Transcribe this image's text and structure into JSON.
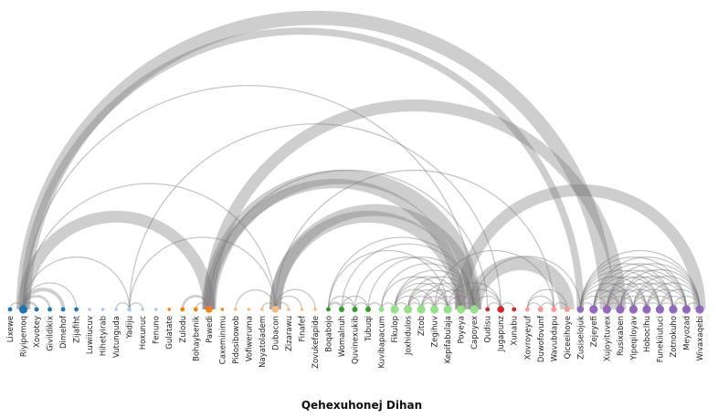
{
  "chart_data": {
    "type": "arc-diagram",
    "title": "Qehexuhonej Dihan",
    "nodes": [
      {
        "name": "Lixewe",
        "group": 0,
        "size": 1
      },
      {
        "name": "Riyipemoq",
        "group": 0,
        "size": 4
      },
      {
        "name": "Xovotey",
        "group": 0,
        "size": 1
      },
      {
        "name": "Givildikix",
        "group": 0,
        "size": 1
      },
      {
        "name": "Dimehof",
        "group": 0,
        "size": 1
      },
      {
        "name": "Zijafiht",
        "group": 0,
        "size": 1
      },
      {
        "name": "Luwiiucuv",
        "group": 1,
        "size": 0
      },
      {
        "name": "Hihetyirab",
        "group": 1,
        "size": 0
      },
      {
        "name": "Vutunguda",
        "group": 1,
        "size": 0
      },
      {
        "name": "Yadiju",
        "group": 1,
        "size": 1
      },
      {
        "name": "Hoxunuc",
        "group": 1,
        "size": 0
      },
      {
        "name": "Fenuno",
        "group": 1,
        "size": 0
      },
      {
        "name": "Gulatate",
        "group": 2,
        "size": 0
      },
      {
        "name": "Zulodu",
        "group": 2,
        "size": 1
      },
      {
        "name": "Bohaybenik",
        "group": 2,
        "size": 1
      },
      {
        "name": "Pawedi",
        "group": 2,
        "size": 3
      },
      {
        "name": "Caxeminimu",
        "group": 2,
        "size": 0
      },
      {
        "name": "Pidosibowob",
        "group": 3,
        "size": 0
      },
      {
        "name": "Vofiweruma",
        "group": 3,
        "size": 0
      },
      {
        "name": "Nayatoladem",
        "group": 3,
        "size": 0
      },
      {
        "name": "Dubacon",
        "group": 3,
        "size": 3
      },
      {
        "name": "Zizarawu",
        "group": 3,
        "size": 0
      },
      {
        "name": "Finafef",
        "group": 3,
        "size": 0
      },
      {
        "name": "Zovukefapide",
        "group": 3,
        "size": 0
      },
      {
        "name": "Boqabojo",
        "group": 4,
        "size": 1
      },
      {
        "name": "Womalnuh",
        "group": 4,
        "size": 2
      },
      {
        "name": "Quvinexukib",
        "group": 4,
        "size": 2
      },
      {
        "name": "Tubuqi",
        "group": 4,
        "size": 2
      },
      {
        "name": "Kuvibapacum",
        "group": 5,
        "size": 2
      },
      {
        "name": "Fikulop",
        "group": 5,
        "size": 4
      },
      {
        "name": "Joxhidulos",
        "group": 5,
        "size": 4
      },
      {
        "name": "Zitob",
        "group": 5,
        "size": 4
      },
      {
        "name": "Zegihuv",
        "group": 5,
        "size": 4
      },
      {
        "name": "Kepifabulaja",
        "group": 5,
        "size": 4
      },
      {
        "name": "Poyeya",
        "group": 5,
        "size": 4
      },
      {
        "name": "Capoyex",
        "group": 5,
        "size": 4
      },
      {
        "name": "Qudisu",
        "group": 6,
        "size": 1
      },
      {
        "name": "Jugapunz",
        "group": 6,
        "size": 3
      },
      {
        "name": "Xunabu",
        "group": 6,
        "size": 1
      },
      {
        "name": "Xovroyeyuf",
        "group": 7,
        "size": 1
      },
      {
        "name": "Duwofovunf",
        "group": 7,
        "size": 2
      },
      {
        "name": "Wavubdapu",
        "group": 7,
        "size": 2
      },
      {
        "name": "Qiceeihoye",
        "group": 7,
        "size": 2
      },
      {
        "name": "Zusiselojuk",
        "group": 8,
        "size": 3
      },
      {
        "name": "Zejeyefi",
        "group": 8,
        "size": 4
      },
      {
        "name": "Xujoyituvex",
        "group": 8,
        "size": 4
      },
      {
        "name": "Rusixaben",
        "group": 8,
        "size": 4
      },
      {
        "name": "Yipeqiloyav",
        "group": 8,
        "size": 4
      },
      {
        "name": "Hoboclhu",
        "group": 8,
        "size": 4
      },
      {
        "name": "Funekiiutuci",
        "group": 8,
        "size": 4
      },
      {
        "name": "Zotnokuho",
        "group": 8,
        "size": 4
      },
      {
        "name": "Meyozad",
        "group": 8,
        "size": 4
      },
      {
        "name": "Wivaxaqebi",
        "group": 8,
        "size": 4
      }
    ],
    "groups": [
      {
        "color": "#1f77b4"
      },
      {
        "color": "#aec7e8"
      },
      {
        "color": "#ff7f0e"
      },
      {
        "color": "#ffbb78"
      },
      {
        "color": "#2ca02c"
      },
      {
        "color": "#98df8a"
      },
      {
        "color": "#d62728"
      },
      {
        "color": "#ff9896"
      },
      {
        "color": "#9467bd"
      }
    ],
    "links": [
      {
        "source": 1,
        "target": 0,
        "value": 1
      },
      {
        "source": 1,
        "target": 2,
        "value": 2
      },
      {
        "source": 1,
        "target": 3,
        "value": 2
      },
      {
        "source": 1,
        "target": 4,
        "value": 3
      },
      {
        "source": 1,
        "target": 5,
        "value": 1
      },
      {
        "source": 1,
        "target": 9,
        "value": 1
      },
      {
        "source": 1,
        "target": 15,
        "value": 10
      },
      {
        "source": 1,
        "target": 20,
        "value": 1
      },
      {
        "source": 1,
        "target": 35,
        "value": 1
      },
      {
        "source": 1,
        "target": 43,
        "value": 6
      },
      {
        "source": 1,
        "target": 45,
        "value": 12
      },
      {
        "source": 8,
        "target": 9,
        "value": 1
      },
      {
        "source": 9,
        "target": 10,
        "value": 1
      },
      {
        "source": 9,
        "target": 20,
        "value": 1
      },
      {
        "source": 9,
        "target": 37,
        "value": 1
      },
      {
        "source": 13,
        "target": 15,
        "value": 2
      },
      {
        "source": 14,
        "target": 15,
        "value": 1
      },
      {
        "source": 15,
        "target": 34,
        "value": 8
      },
      {
        "source": 15,
        "target": 35,
        "value": 12
      },
      {
        "source": 15,
        "target": 36,
        "value": 1
      },
      {
        "source": 15,
        "target": 46,
        "value": 10
      },
      {
        "source": 17,
        "target": 20,
        "value": 1
      },
      {
        "source": 19,
        "target": 20,
        "value": 1
      },
      {
        "source": 20,
        "target": 21,
        "value": 1
      },
      {
        "source": 20,
        "target": 22,
        "value": 1
      },
      {
        "source": 20,
        "target": 23,
        "value": 1
      },
      {
        "source": 20,
        "target": 34,
        "value": 10
      },
      {
        "source": 20,
        "target": 35,
        "value": 10
      },
      {
        "source": 20,
        "target": 41,
        "value": 1
      },
      {
        "source": 24,
        "target": 25,
        "value": 2
      },
      {
        "source": 24,
        "target": 26,
        "value": 1
      },
      {
        "source": 24,
        "target": 33,
        "value": 1
      },
      {
        "source": 24,
        "target": 35,
        "value": 1
      },
      {
        "source": 25,
        "target": 26,
        "value": 1
      },
      {
        "source": 25,
        "target": 27,
        "value": 1
      },
      {
        "source": 25,
        "target": 35,
        "value": 1
      },
      {
        "source": 26,
        "target": 27,
        "value": 1
      },
      {
        "source": 26,
        "target": 34,
        "value": 1
      },
      {
        "source": 27,
        "target": 28,
        "value": 1
      },
      {
        "source": 27,
        "target": 35,
        "value": 1
      },
      {
        "source": 28,
        "target": 29,
        "value": 1
      },
      {
        "source": 28,
        "target": 33,
        "value": 1
      },
      {
        "source": 28,
        "target": 35,
        "value": 1
      },
      {
        "source": 29,
        "target": 30,
        "value": 1
      },
      {
        "source": 29,
        "target": 31,
        "value": 1
      },
      {
        "source": 29,
        "target": 32,
        "value": 1
      },
      {
        "source": 29,
        "target": 33,
        "value": 1
      },
      {
        "source": 29,
        "target": 34,
        "value": 1
      },
      {
        "source": 29,
        "target": 35,
        "value": 1
      },
      {
        "source": 30,
        "target": 31,
        "value": 1
      },
      {
        "source": 30,
        "target": 32,
        "value": 1
      },
      {
        "source": 30,
        "target": 33,
        "value": 1
      },
      {
        "source": 30,
        "target": 34,
        "value": 1
      },
      {
        "source": 30,
        "target": 35,
        "value": 1
      },
      {
        "source": 31,
        "target": 32,
        "value": 1
      },
      {
        "source": 31,
        "target": 33,
        "value": 1
      },
      {
        "source": 31,
        "target": 34,
        "value": 1
      },
      {
        "source": 31,
        "target": 35,
        "value": 1
      },
      {
        "source": 32,
        "target": 33,
        "value": 1
      },
      {
        "source": 32,
        "target": 34,
        "value": 1
      },
      {
        "source": 32,
        "target": 35,
        "value": 1
      },
      {
        "source": 32,
        "target": 41,
        "value": 1
      },
      {
        "source": 33,
        "target": 34,
        "value": 1
      },
      {
        "source": 33,
        "target": 35,
        "value": 1
      },
      {
        "source": 33,
        "target": 37,
        "value": 1
      },
      {
        "source": 34,
        "target": 35,
        "value": 1
      },
      {
        "source": 34,
        "target": 37,
        "value": 1
      },
      {
        "source": 34,
        "target": 52,
        "value": 10
      },
      {
        "source": 35,
        "target": 37,
        "value": 1
      },
      {
        "source": 35,
        "target": 42,
        "value": 12
      },
      {
        "source": 35,
        "target": 43,
        "value": 1
      },
      {
        "source": 36,
        "target": 37,
        "value": 1
      },
      {
        "source": 37,
        "target": 38,
        "value": 1
      },
      {
        "source": 39,
        "target": 40,
        "value": 1
      },
      {
        "source": 39,
        "target": 41,
        "value": 1
      },
      {
        "source": 39,
        "target": 42,
        "value": 1
      },
      {
        "source": 40,
        "target": 41,
        "value": 1
      },
      {
        "source": 41,
        "target": 42,
        "value": 1
      },
      {
        "source": 43,
        "target": 44,
        "value": 1
      },
      {
        "source": 43,
        "target": 45,
        "value": 1
      },
      {
        "source": 43,
        "target": 46,
        "value": 1
      },
      {
        "source": 43,
        "target": 47,
        "value": 1
      },
      {
        "source": 43,
        "target": 48,
        "value": 1
      },
      {
        "source": 43,
        "target": 49,
        "value": 1
      },
      {
        "source": 43,
        "target": 50,
        "value": 1
      },
      {
        "source": 43,
        "target": 51,
        "value": 1
      },
      {
        "source": 43,
        "target": 52,
        "value": 1
      },
      {
        "source": 44,
        "target": 45,
        "value": 1
      },
      {
        "source": 44,
        "target": 46,
        "value": 1
      },
      {
        "source": 44,
        "target": 47,
        "value": 1
      },
      {
        "source": 44,
        "target": 48,
        "value": 1
      },
      {
        "source": 44,
        "target": 49,
        "value": 1
      },
      {
        "source": 44,
        "target": 50,
        "value": 1
      },
      {
        "source": 44,
        "target": 51,
        "value": 1
      },
      {
        "source": 44,
        "target": 52,
        "value": 1
      },
      {
        "source": 45,
        "target": 46,
        "value": 1
      },
      {
        "source": 45,
        "target": 47,
        "value": 1
      },
      {
        "source": 45,
        "target": 48,
        "value": 1
      },
      {
        "source": 45,
        "target": 49,
        "value": 1
      },
      {
        "source": 45,
        "target": 50,
        "value": 1
      },
      {
        "source": 45,
        "target": 51,
        "value": 1
      },
      {
        "source": 45,
        "target": 52,
        "value": 1
      },
      {
        "source": 46,
        "target": 47,
        "value": 1
      },
      {
        "source": 46,
        "target": 48,
        "value": 1
      },
      {
        "source": 46,
        "target": 49,
        "value": 1
      },
      {
        "source": 46,
        "target": 50,
        "value": 1
      },
      {
        "source": 46,
        "target": 51,
        "value": 1
      },
      {
        "source": 46,
        "target": 52,
        "value": 1
      },
      {
        "source": 47,
        "target": 48,
        "value": 1
      },
      {
        "source": 47,
        "target": 49,
        "value": 1
      },
      {
        "source": 47,
        "target": 50,
        "value": 1
      },
      {
        "source": 47,
        "target": 51,
        "value": 1
      },
      {
        "source": 47,
        "target": 52,
        "value": 1
      },
      {
        "source": 48,
        "target": 49,
        "value": 1
      },
      {
        "source": 48,
        "target": 50,
        "value": 1
      },
      {
        "source": 48,
        "target": 51,
        "value": 1
      },
      {
        "source": 48,
        "target": 52,
        "value": 1
      },
      {
        "source": 49,
        "target": 50,
        "value": 1
      },
      {
        "source": 49,
        "target": 51,
        "value": 1
      },
      {
        "source": 49,
        "target": 52,
        "value": 1
      },
      {
        "source": 50,
        "target": 51,
        "value": 1
      },
      {
        "source": 50,
        "target": 52,
        "value": 1
      },
      {
        "source": 51,
        "target": 52,
        "value": 1
      }
    ]
  }
}
